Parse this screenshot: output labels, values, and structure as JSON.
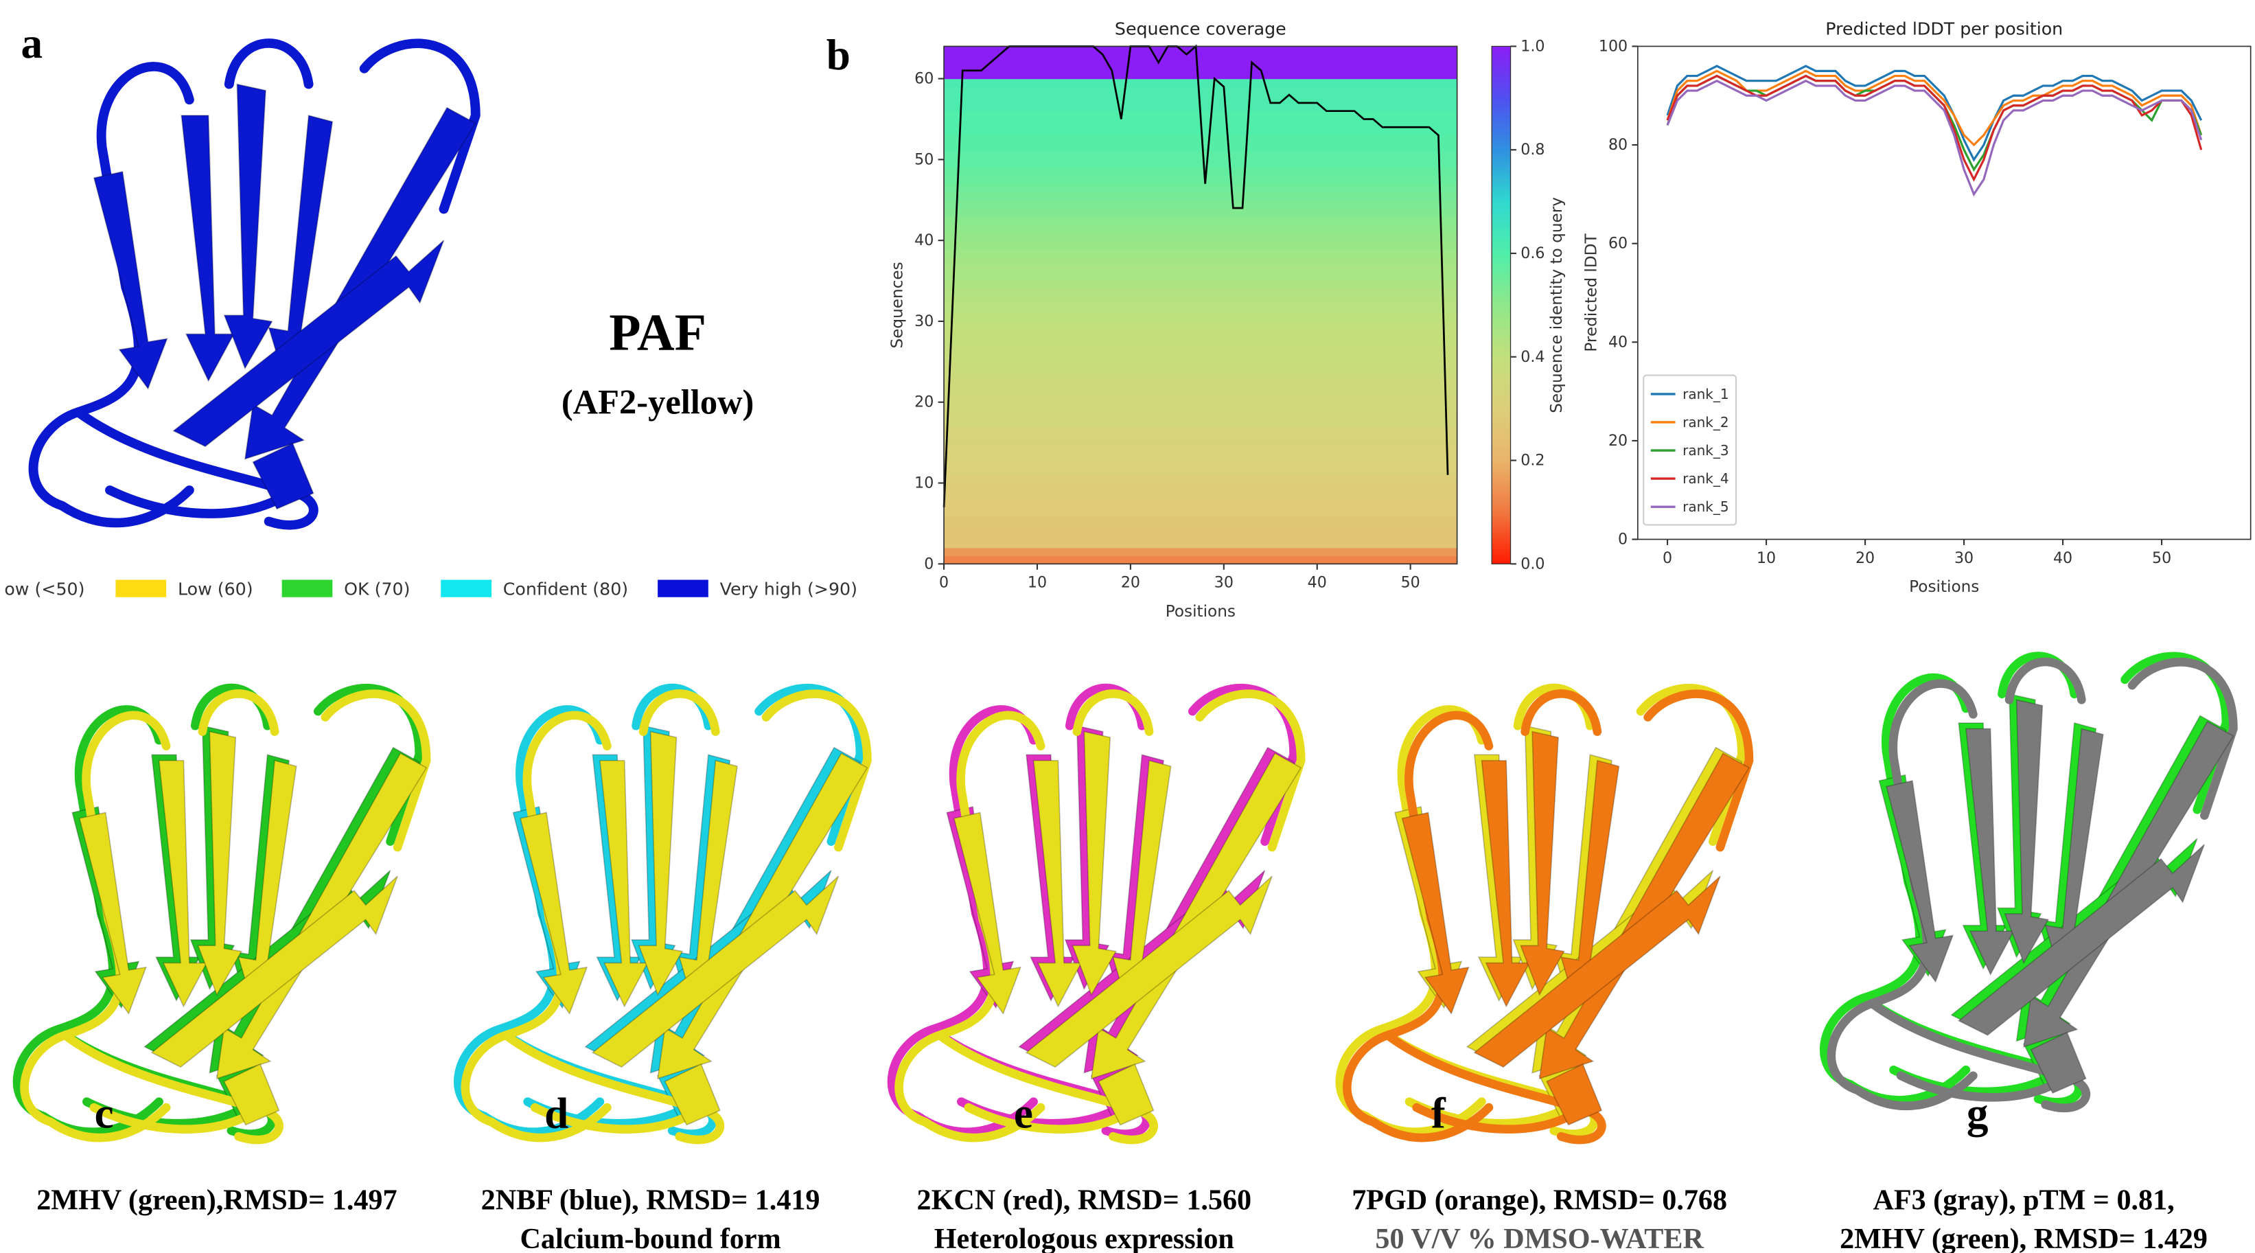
{
  "panel_labels": [
    "a",
    "b",
    "c",
    "d",
    "e",
    "f",
    "g"
  ],
  "panel_a": {
    "title": "PAF",
    "subtitle": "(AF2-yellow)",
    "legend": [
      {
        "label": "ow (<50)",
        "color": "#ff7d45"
      },
      {
        "label": "Low (60)",
        "color": "#ffdb13"
      },
      {
        "label": "OK (70)",
        "color": "#2fd52f"
      },
      {
        "label": "Confident (80)",
        "color": "#12e6ee"
      },
      {
        "label": "Very high (>90)",
        "color": "#0a10d8"
      }
    ]
  },
  "captions": [
    [
      "2MHV (green),RMSD= 1.497"
    ],
    [
      "2NBF (blue), RMSD= 1.419",
      "Calcium-bound form"
    ],
    [
      "2KCN (red), RMSD= 1.560",
      "Heterologous expression"
    ],
    [
      "7PGD (orange), RMSD= 0.768",
      "50 V/V % DMSO-WATER"
    ],
    [
      "AF3 (gray),  pTM = 0.81,",
      "2MHV (green), RMSD= 1.429"
    ]
  ],
  "chart_data": [
    {
      "type": "heatmap",
      "title": "Sequence coverage",
      "x_label": "Positions",
      "y_label": "Sequences",
      "colorbar_label": "Sequence identity to query",
      "row_identity": [
        0.12,
        0.15,
        0.26,
        0.26,
        0.27,
        0.27,
        0.28,
        0.28,
        0.29,
        0.29,
        0.3,
        0.31,
        0.31,
        0.32,
        0.32,
        0.33,
        0.33,
        0.34,
        0.34,
        0.35,
        0.35,
        0.36,
        0.36,
        0.37,
        0.37,
        0.38,
        0.38,
        0.39,
        0.39,
        0.4,
        0.41,
        0.42,
        0.42,
        0.43,
        0.44,
        0.45,
        0.45,
        0.46,
        0.47,
        0.48,
        0.49,
        0.5,
        0.51,
        0.52,
        0.53,
        0.54,
        0.55,
        0.56,
        0.57,
        0.58,
        0.58,
        0.59,
        0.59,
        0.6,
        0.6,
        0.6,
        0.61,
        0.61,
        0.61,
        0.62,
        1.0,
        1.0,
        1.0,
        1.0
      ],
      "colormap": [
        "#ff1a00",
        "#f07840",
        "#e9b56a",
        "#ddcf7a",
        "#c2e07c",
        "#8fe88a",
        "#50eeaa",
        "#30d8d0",
        "#3090e0",
        "#5050f0",
        "#8b1ef5"
      ],
      "clim": [
        0,
        1
      ],
      "colorbar_ticks": [
        {
          "value": 0,
          "label": "0.0"
        },
        0.2,
        0.4,
        0.6,
        0.8,
        {
          "value": 1,
          "label": "1.0"
        }
      ],
      "x": [
        0,
        1,
        2,
        3,
        4,
        5,
        6,
        7,
        8,
        9,
        10,
        11,
        12,
        13,
        14,
        15,
        16,
        17,
        18,
        19,
        20,
        21,
        22,
        23,
        24,
        25,
        26,
        27,
        28,
        29,
        30,
        31,
        32,
        33,
        34,
        35,
        36,
        37,
        38,
        39,
        40,
        41,
        42,
        43,
        44,
        45,
        46,
        47,
        48,
        49,
        50,
        51,
        52,
        53,
        54
      ],
      "values": [
        7,
        34,
        61,
        61,
        61,
        62,
        63,
        64,
        64,
        64,
        64,
        64,
        64,
        64,
        64,
        64,
        64,
        63,
        61,
        55,
        64,
        64,
        64,
        62,
        64,
        64,
        63,
        64,
        47,
        60,
        59,
        44,
        44,
        62,
        61,
        57,
        57,
        58,
        57,
        57,
        57,
        56,
        56,
        56,
        56,
        55,
        55,
        54,
        54,
        54,
        54,
        54,
        54,
        53,
        11
      ],
      "line_color": "#000000",
      "xlim": [
        0,
        55
      ],
      "ylim": [
        0,
        64
      ],
      "xticks": [
        0,
        10,
        20,
        30,
        40,
        50
      ],
      "yticks": [
        0,
        10,
        20,
        30,
        40,
        50,
        60
      ]
    },
    {
      "type": "line",
      "title": "Predicted lDDT per position",
      "x_label": "Positions",
      "y_label": "Predicted lDDT",
      "x": [
        0,
        1,
        2,
        3,
        4,
        5,
        6,
        7,
        8,
        9,
        10,
        11,
        12,
        13,
        14,
        15,
        16,
        17,
        18,
        19,
        20,
        21,
        22,
        23,
        24,
        25,
        26,
        27,
        28,
        29,
        30,
        31,
        32,
        33,
        34,
        35,
        36,
        37,
        38,
        39,
        40,
        41,
        42,
        43,
        44,
        45,
        46,
        47,
        48,
        49,
        50,
        51,
        52,
        53,
        54
      ],
      "series": [
        {
          "name": "rank_1",
          "color": "#1f77b4",
          "values": [
            86,
            92,
            94,
            94,
            95,
            96,
            95,
            94,
            93,
            93,
            93,
            93,
            94,
            95,
            96,
            95,
            95,
            95,
            93,
            92,
            92,
            93,
            94,
            95,
            95,
            94,
            94,
            92,
            90,
            86,
            81,
            77,
            80,
            85,
            89,
            90,
            90,
            91,
            92,
            92,
            93,
            93,
            94,
            94,
            93,
            93,
            92,
            91,
            89,
            90,
            91,
            91,
            91,
            89,
            85
          ]
        },
        {
          "name": "rank_2",
          "color": "#ff7f0e",
          "values": [
            85,
            91,
            93,
            93,
            94,
            95,
            94,
            93,
            91,
            91,
            91,
            92,
            93,
            94,
            95,
            94,
            94,
            94,
            92,
            91,
            91,
            92,
            93,
            94,
            94,
            93,
            93,
            91,
            89,
            86,
            82,
            80,
            82,
            85,
            88,
            89,
            89,
            90,
            90,
            91,
            92,
            92,
            93,
            93,
            92,
            92,
            91,
            90,
            88,
            89,
            90,
            90,
            90,
            88,
            82
          ]
        },
        {
          "name": "rank_3",
          "color": "#2ca02c",
          "values": [
            84,
            90,
            92,
            92,
            93,
            94,
            93,
            92,
            91,
            91,
            90,
            91,
            92,
            93,
            94,
            93,
            93,
            93,
            91,
            90,
            91,
            91,
            92,
            93,
            93,
            92,
            92,
            90,
            88,
            84,
            79,
            75,
            78,
            83,
            87,
            88,
            88,
            89,
            90,
            90,
            91,
            91,
            92,
            92,
            91,
            91,
            90,
            89,
            87,
            85,
            89,
            89,
            89,
            87,
            82
          ]
        },
        {
          "name": "rank_4",
          "color": "#d62728",
          "values": [
            85,
            90,
            92,
            92,
            93,
            94,
            93,
            92,
            91,
            90,
            90,
            91,
            92,
            93,
            94,
            93,
            93,
            93,
            91,
            90,
            90,
            91,
            92,
            93,
            93,
            92,
            92,
            90,
            88,
            83,
            77,
            73,
            77,
            83,
            87,
            88,
            88,
            89,
            90,
            90,
            91,
            91,
            92,
            92,
            91,
            91,
            90,
            89,
            86,
            87,
            89,
            89,
            89,
            86,
            79
          ]
        },
        {
          "name": "rank_5",
          "color": "#9467bd",
          "values": [
            84,
            89,
            91,
            91,
            92,
            93,
            92,
            91,
            90,
            90,
            89,
            90,
            91,
            92,
            93,
            92,
            92,
            92,
            90,
            89,
            89,
            90,
            91,
            92,
            92,
            91,
            91,
            89,
            87,
            82,
            75,
            70,
            73,
            80,
            85,
            87,
            87,
            88,
            89,
            89,
            90,
            90,
            91,
            91,
            90,
            90,
            89,
            88,
            87,
            88,
            89,
            89,
            89,
            87,
            81
          ]
        }
      ],
      "xlim": [
        -3,
        59
      ],
      "ylim": [
        0,
        100
      ],
      "xticks": [
        0,
        10,
        20,
        30,
        40,
        50
      ],
      "yticks": [
        0,
        20,
        40,
        60,
        80,
        100
      ],
      "legend": "lower left"
    }
  ]
}
